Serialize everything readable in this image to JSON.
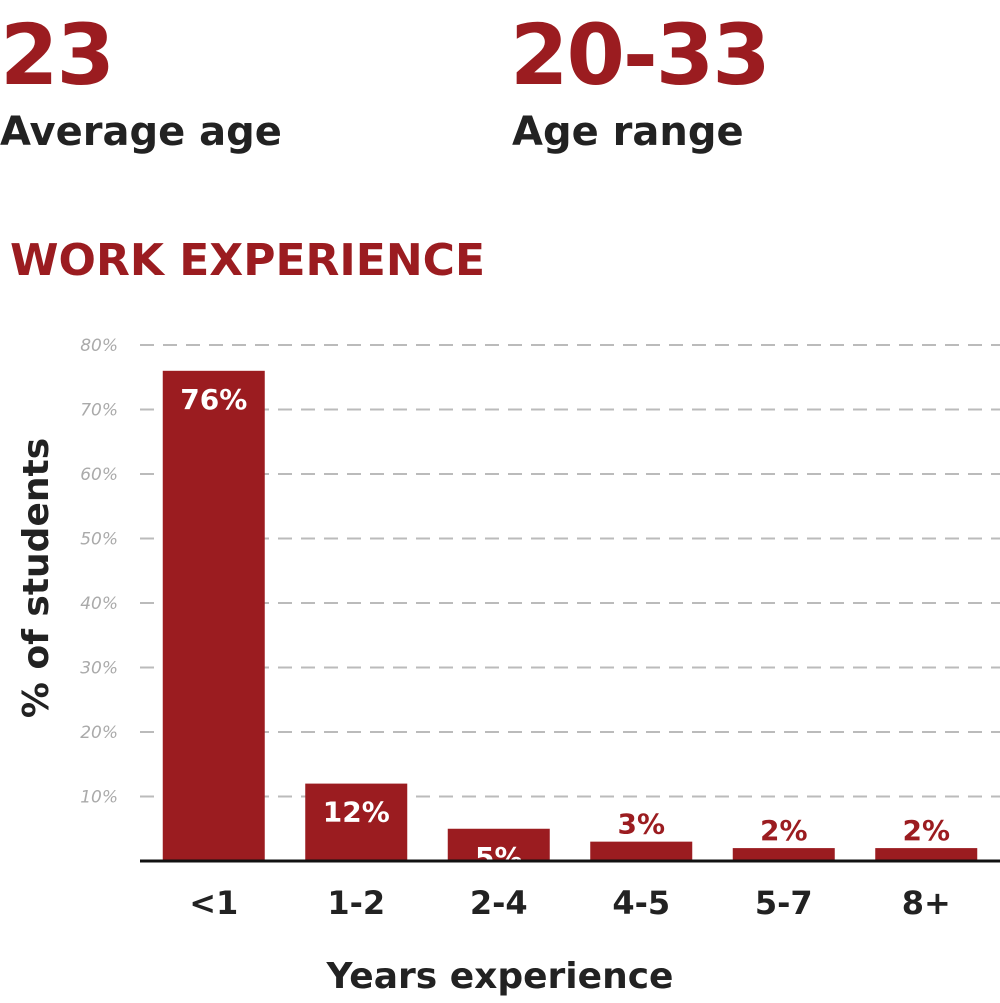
{
  "stats": [
    {
      "value": "23",
      "label": "Average age"
    },
    {
      "value": "20-33",
      "label": "Age range"
    }
  ],
  "chart_data": {
    "type": "bar",
    "title": "WORK EXPERIENCE",
    "categories": [
      "<1",
      "1-2",
      "2-4",
      "4-5",
      "5-7",
      "8+"
    ],
    "values": [
      76,
      12,
      5,
      3,
      2,
      2
    ],
    "value_labels": [
      "76%",
      "12%",
      "5%",
      "3%",
      "2%",
      "2%"
    ],
    "color": "#9b1c20",
    "ylim": [
      0,
      80
    ],
    "yticks": [
      {
        "value": 10,
        "label": "10%"
      },
      {
        "value": 20,
        "label": "20%"
      },
      {
        "value": 30,
        "label": "30%"
      },
      {
        "value": 40,
        "label": "40%"
      },
      {
        "value": 50,
        "label": "50%"
      },
      {
        "value": 60,
        "label": "60%"
      },
      {
        "value": 70,
        "label": "70%"
      },
      {
        "value": 80,
        "label": "80%"
      }
    ],
    "grid": true,
    "xlabel": "Years experience",
    "ylabel": "% of students"
  }
}
